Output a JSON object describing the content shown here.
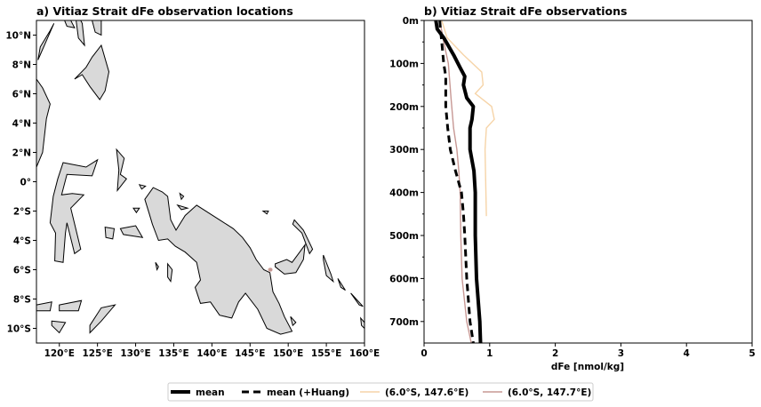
{
  "colors": {
    "land": "#d9d9d9",
    "coast": "#000000",
    "mean": "#000000",
    "station_a": "#f6d4a8",
    "station_b": "#c79894"
  },
  "chart_data": [
    {
      "type": "map",
      "title": "a) Vitiaz Strait dFe observation locations",
      "xlim": [
        117,
        160
      ],
      "ylim": [
        -11,
        11
      ],
      "x_ticks": [
        120,
        125,
        130,
        135,
        140,
        145,
        150,
        155,
        160
      ],
      "x_tick_labels": [
        "120°E",
        "125°E",
        "130°E",
        "135°E",
        "140°E",
        "145°E",
        "150°E",
        "155°E",
        "160°E"
      ],
      "y_ticks": [
        10,
        8,
        6,
        4,
        2,
        0,
        -2,
        -4,
        -6,
        -8,
        -10
      ],
      "y_tick_labels": [
        "10°N",
        "8°N",
        "6°N",
        "4°N",
        "2°N",
        "0°",
        "2°S",
        "4°S",
        "6°S",
        "8°S",
        "10°S"
      ],
      "stations": [
        {
          "lon": 147.6,
          "lat": -6.0
        },
        {
          "lon": 147.7,
          "lat": -6.0
        }
      ]
    },
    {
      "type": "line",
      "title": "b) Vitiaz Strait dFe observations",
      "xlabel": "dFe [nmol/kg]",
      "ylabel": "",
      "xlim": [
        0,
        5
      ],
      "ylim": [
        0,
        750
      ],
      "y_inverted": true,
      "x_ticks": [
        0,
        1,
        2,
        3,
        4,
        5
      ],
      "x_tick_labels": [
        "0",
        "1",
        "2",
        "3",
        "4",
        "5"
      ],
      "y_ticks": [
        0,
        100,
        200,
        300,
        400,
        500,
        600,
        700
      ],
      "y_tick_labels": [
        "0m",
        "100m",
        "200m",
        "300m",
        "400m",
        "500m",
        "600m",
        "700m"
      ],
      "legend_location": "bottom-center-outside",
      "series": [
        {
          "name": "mean",
          "style": "solid-thick",
          "x": [
            0.18,
            0.2,
            0.3,
            0.45,
            0.55,
            0.62,
            0.6,
            0.65,
            0.75,
            0.73,
            0.7,
            0.7,
            0.76,
            0.78,
            0.78,
            0.8,
            0.85,
            0.86
          ],
          "y": [
            0,
            20,
            40,
            80,
            110,
            130,
            150,
            180,
            200,
            230,
            250,
            300,
            350,
            400,
            500,
            600,
            700,
            750
          ]
        },
        {
          "name": "mean (+Huang)",
          "style": "dashed-thick",
          "x": [
            0.24,
            0.25,
            0.27,
            0.3,
            0.33,
            0.33,
            0.36,
            0.4,
            0.48,
            0.57,
            0.6,
            0.62,
            0.65,
            0.7,
            0.75
          ],
          "y": [
            0,
            20,
            50,
            100,
            130,
            200,
            250,
            300,
            350,
            400,
            450,
            500,
            600,
            700,
            750
          ]
        },
        {
          "name": "(6.0°S, 147.6°E)",
          "style": "thin",
          "x": [
            0.27,
            0.35,
            0.6,
            0.88,
            0.9,
            0.78,
            1.03,
            1.07,
            0.95,
            0.93,
            0.95
          ],
          "y": [
            0,
            40,
            80,
            120,
            150,
            170,
            200,
            230,
            250,
            300,
            455
          ]
        },
        {
          "name": "(6.0°S, 147.7°E)",
          "style": "thin",
          "x": [
            0.24,
            0.3,
            0.37,
            0.41,
            0.45,
            0.5,
            0.53,
            0.55,
            0.56,
            0.58,
            0.65,
            0.72
          ],
          "y": [
            0,
            50,
            100,
            180,
            250,
            300,
            350,
            400,
            500,
            600,
            700,
            750
          ]
        }
      ]
    }
  ]
}
